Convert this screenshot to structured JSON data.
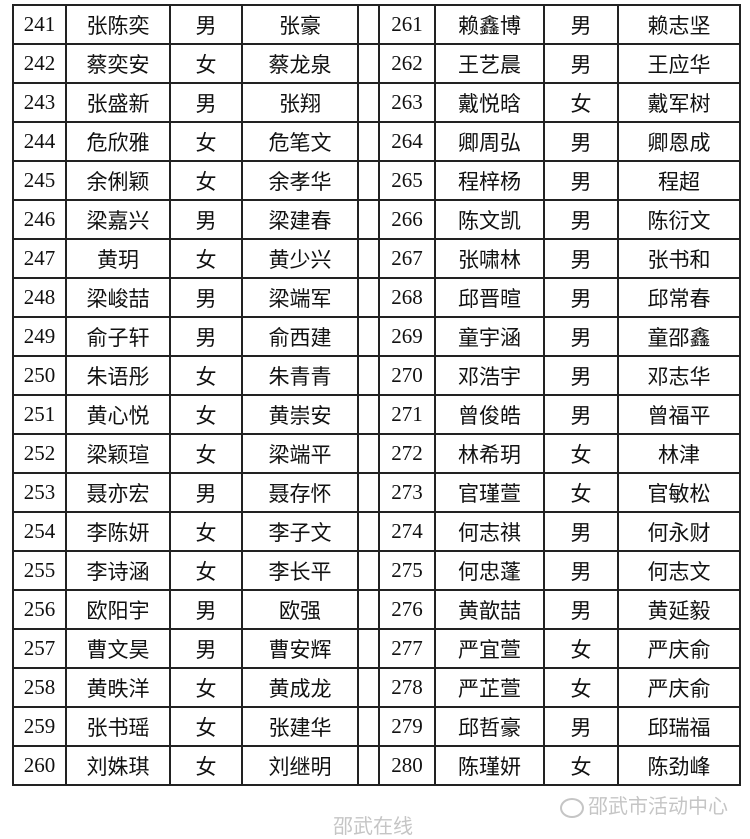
{
  "rows": [
    {
      "l": {
        "no": "241",
        "name": "张陈奕",
        "gender": "男",
        "parent": "张豪"
      },
      "r": {
        "no": "261",
        "name": "赖鑫博",
        "gender": "男",
        "parent": "赖志坚"
      }
    },
    {
      "l": {
        "no": "242",
        "name": "蔡奕安",
        "gender": "女",
        "parent": "蔡龙泉"
      },
      "r": {
        "no": "262",
        "name": "王艺晨",
        "gender": "男",
        "parent": "王应华"
      }
    },
    {
      "l": {
        "no": "243",
        "name": "张盛新",
        "gender": "男",
        "parent": "张翔"
      },
      "r": {
        "no": "263",
        "name": "戴悦晗",
        "gender": "女",
        "parent": "戴军树"
      }
    },
    {
      "l": {
        "no": "244",
        "name": "危欣雅",
        "gender": "女",
        "parent": "危笔文"
      },
      "r": {
        "no": "264",
        "name": "卿周弘",
        "gender": "男",
        "parent": "卿恩成"
      }
    },
    {
      "l": {
        "no": "245",
        "name": "余俐颖",
        "gender": "女",
        "parent": "余孝华"
      },
      "r": {
        "no": "265",
        "name": "程梓杨",
        "gender": "男",
        "parent": "程超"
      }
    },
    {
      "l": {
        "no": "246",
        "name": "梁嘉兴",
        "gender": "男",
        "parent": "梁建春"
      },
      "r": {
        "no": "266",
        "name": "陈文凯",
        "gender": "男",
        "parent": "陈衍文"
      }
    },
    {
      "l": {
        "no": "247",
        "name": "黄玥",
        "gender": "女",
        "parent": "黄少兴"
      },
      "r": {
        "no": "267",
        "name": "张啸林",
        "gender": "男",
        "parent": "张书和"
      }
    },
    {
      "l": {
        "no": "248",
        "name": "梁峻喆",
        "gender": "男",
        "parent": "梁端军"
      },
      "r": {
        "no": "268",
        "name": "邱晋暄",
        "gender": "男",
        "parent": "邱常春"
      }
    },
    {
      "l": {
        "no": "249",
        "name": "俞子轩",
        "gender": "男",
        "parent": "俞西建"
      },
      "r": {
        "no": "269",
        "name": "童宇涵",
        "gender": "男",
        "parent": "童邵鑫"
      }
    },
    {
      "l": {
        "no": "250",
        "name": "朱语彤",
        "gender": "女",
        "parent": "朱青青"
      },
      "r": {
        "no": "270",
        "name": "邓浩宇",
        "gender": "男",
        "parent": "邓志华"
      }
    },
    {
      "l": {
        "no": "251",
        "name": "黄心悦",
        "gender": "女",
        "parent": "黄崇安"
      },
      "r": {
        "no": "271",
        "name": "曾俊皓",
        "gender": "男",
        "parent": "曾福平"
      }
    },
    {
      "l": {
        "no": "252",
        "name": "梁颖瑄",
        "gender": "女",
        "parent": "梁端平"
      },
      "r": {
        "no": "272",
        "name": "林希玥",
        "gender": "女",
        "parent": "林津"
      }
    },
    {
      "l": {
        "no": "253",
        "name": "聂亦宏",
        "gender": "男",
        "parent": "聂存怀"
      },
      "r": {
        "no": "273",
        "name": "官瑾萱",
        "gender": "女",
        "parent": "官敏松"
      }
    },
    {
      "l": {
        "no": "254",
        "name": "李陈妍",
        "gender": "女",
        "parent": "李子文"
      },
      "r": {
        "no": "274",
        "name": "何志祺",
        "gender": "男",
        "parent": "何永财"
      }
    },
    {
      "l": {
        "no": "255",
        "name": "李诗涵",
        "gender": "女",
        "parent": "李长平"
      },
      "r": {
        "no": "275",
        "name": "何忠蓬",
        "gender": "男",
        "parent": "何志文"
      }
    },
    {
      "l": {
        "no": "256",
        "name": "欧阳宇",
        "gender": "男",
        "parent": "欧强"
      },
      "r": {
        "no": "276",
        "name": "黄歆喆",
        "gender": "男",
        "parent": "黄延毅"
      }
    },
    {
      "l": {
        "no": "257",
        "name": "曹文昊",
        "gender": "男",
        "parent": "曹安辉"
      },
      "r": {
        "no": "277",
        "name": "严宜萱",
        "gender": "女",
        "parent": "严庆俞"
      }
    },
    {
      "l": {
        "no": "258",
        "name": "黄昳洋",
        "gender": "女",
        "parent": "黄成龙"
      },
      "r": {
        "no": "278",
        "name": "严芷萱",
        "gender": "女",
        "parent": "严庆俞"
      }
    },
    {
      "l": {
        "no": "259",
        "name": "张书瑶",
        "gender": "女",
        "parent": "张建华"
      },
      "r": {
        "no": "279",
        "name": "邱哲豪",
        "gender": "男",
        "parent": "邱瑞福"
      }
    },
    {
      "l": {
        "no": "260",
        "name": "刘姝琪",
        "gender": "女",
        "parent": "刘继明"
      },
      "r": {
        "no": "280",
        "name": "陈瑾妍",
        "gender": "女",
        "parent": "陈劲峰"
      }
    }
  ],
  "watermarks": {
    "site": "邵武在线",
    "account": "邵武市活动中心"
  }
}
